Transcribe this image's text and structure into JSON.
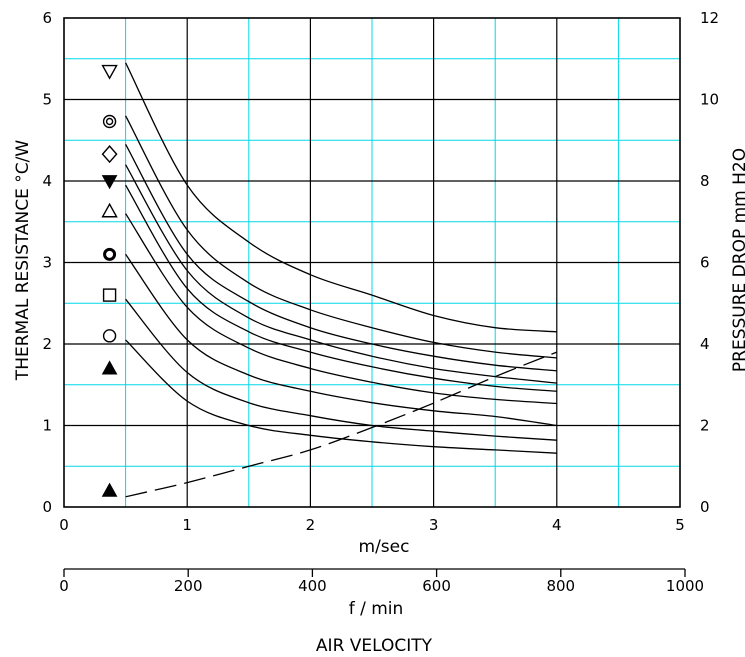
{
  "chart_data": {
    "type": "line",
    "xlabel": "m/sec",
    "x2label": "f / min",
    "caption": "AIR VELOCITY",
    "ylabel": "THERMAL  RESISTANCE  °C/W",
    "y2label": "PRESSURE  DROP  mm H2O",
    "xlim": [
      0,
      5
    ],
    "ylim": [
      0,
      6
    ],
    "y2lim": [
      0,
      12
    ],
    "x2lim": [
      0,
      1000
    ],
    "x_ticks": [
      "0",
      "1",
      "2",
      "3",
      "4",
      "5"
    ],
    "y_ticks": [
      "0",
      "1",
      "2",
      "3",
      "4",
      "5",
      "6"
    ],
    "y2_ticks": [
      "0",
      "2",
      "4",
      "6",
      "8",
      "10",
      "12"
    ],
    "x2_ticks": [
      "0",
      "200",
      "400",
      "600",
      "800",
      "1000"
    ],
    "grid": true,
    "x": [
      0.5,
      1,
      1.5,
      2,
      2.5,
      3,
      3.5,
      4
    ],
    "series": [
      {
        "marker": "down-triangle-open",
        "values": [
          5.45,
          3.95,
          3.25,
          2.85,
          2.6,
          2.35,
          2.2,
          2.15
        ]
      },
      {
        "marker": "double-circle-open",
        "values": [
          4.8,
          3.4,
          2.75,
          2.42,
          2.2,
          2.02,
          1.9,
          1.83
        ]
      },
      {
        "marker": "diamond-open",
        "values": [
          4.45,
          3.1,
          2.52,
          2.2,
          2.0,
          1.85,
          1.74,
          1.67
        ]
      },
      {
        "marker": "down-triangle-filled",
        "values": [
          4.2,
          2.9,
          2.32,
          2.05,
          1.85,
          1.7,
          1.6,
          1.52
        ]
      },
      {
        "marker": "up-triangle-open",
        "values": [
          3.95,
          2.68,
          2.15,
          1.9,
          1.72,
          1.58,
          1.48,
          1.42
        ]
      },
      {
        "marker": "circle-bold",
        "values": [
          3.6,
          2.45,
          1.95,
          1.7,
          1.53,
          1.4,
          1.32,
          1.27
        ]
      },
      {
        "marker": "square-open",
        "values": [
          3.1,
          2.05,
          1.62,
          1.42,
          1.28,
          1.18,
          1.11,
          1.0
        ]
      },
      {
        "marker": "circle-open",
        "values": [
          2.55,
          1.65,
          1.28,
          1.12,
          1.0,
          0.93,
          0.87,
          0.82
        ]
      },
      {
        "marker": "up-triangle-filled",
        "values": [
          2.05,
          1.3,
          1.0,
          0.88,
          0.8,
          0.74,
          0.7,
          0.66
        ]
      }
    ],
    "pressure_drop": {
      "marker": "up-triangle-filled",
      "axis": "right",
      "style": "dashed",
      "x": [
        0.5,
        1,
        1.5,
        2,
        2.5,
        3,
        3.5,
        4
      ],
      "values": [
        0.25,
        0.6,
        1.0,
        1.4,
        1.95,
        2.55,
        3.2,
        3.8
      ]
    }
  }
}
